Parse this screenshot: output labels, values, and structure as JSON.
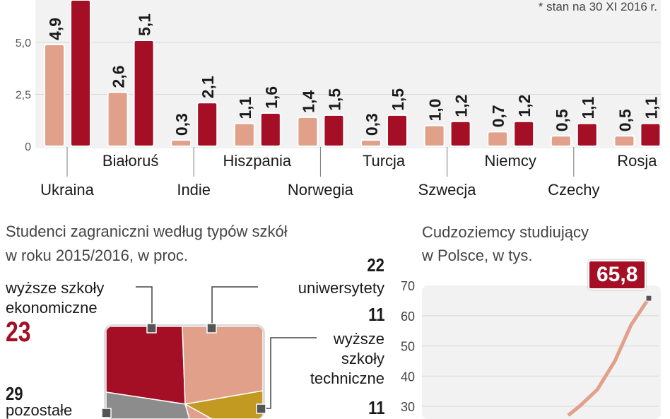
{
  "colors": {
    "series_a": "#e0a08a",
    "series_b": "#a50f26",
    "accent": "#a50f26",
    "gold": "#c29a21",
    "gray": "#8c8c8c",
    "plot_bg": "#f2f2f2"
  },
  "chart_data": [
    {
      "type": "bar",
      "note": "* stan na 30 XI 2016 r.",
      "categories": [
        "Ukraina",
        "Białoruś",
        "Indie",
        "Hiszpania",
        "Norwegia",
        "Turcja",
        "Szwecja",
        "Niemcy",
        "Czechy",
        "Rosja"
      ],
      "series": [
        {
          "values": [
            4.9,
            2.6,
            0.3,
            1.1,
            1.4,
            0.3,
            1.0,
            0.7,
            0.5,
            0.5
          ],
          "labels": [
            "4,9",
            "2,6",
            "0,3",
            "1,1",
            "1,4",
            "0,3",
            "1,0",
            "0,7",
            "0,5",
            "0,5"
          ]
        },
        {
          "values": [
            null,
            5.1,
            2.1,
            1.6,
            1.5,
            1.5,
            1.2,
            1.2,
            1.1,
            1.1
          ],
          "labels": [
            "",
            "5,1",
            "2,1",
            "1,6",
            "1,5",
            "1,5",
            "1,2",
            "1,2",
            "1,1",
            "1,1"
          ]
        }
      ],
      "yticks": [
        "0",
        "2,5",
        "5,0"
      ],
      "ylim": [
        0,
        7
      ],
      "grid": true
    },
    {
      "type": "pie",
      "title": [
        "Studenci zagraniczni według typów szkół",
        "w roku 2015/2016, w proc."
      ],
      "slices": [
        {
          "label": [
            "wyższe szkoły",
            "ekonomiczne"
          ],
          "value": 23,
          "value_label": "23"
        },
        {
          "label": [
            "uniwersytety"
          ],
          "value": 22,
          "value_label": "22"
        },
        {
          "label": [
            "wyższe",
            "szkoły",
            "techniczne"
          ],
          "value": 11,
          "value_label": "11"
        },
        {
          "label": [],
          "value": 11,
          "value_label": "11"
        },
        {
          "label": [
            "pozostałe"
          ],
          "value": 29,
          "value_label": "29"
        }
      ]
    },
    {
      "type": "line",
      "title": [
        "Cudzoziemcy studiujący",
        "w Polsce, w tys."
      ],
      "yticks": [
        "30",
        "40",
        "50",
        "60",
        "70"
      ],
      "ylim": [
        30,
        70
      ],
      "values": [
        27,
        30,
        35.5,
        45,
        57,
        65.8
      ],
      "last_label": "65,8",
      "grid": true
    }
  ]
}
